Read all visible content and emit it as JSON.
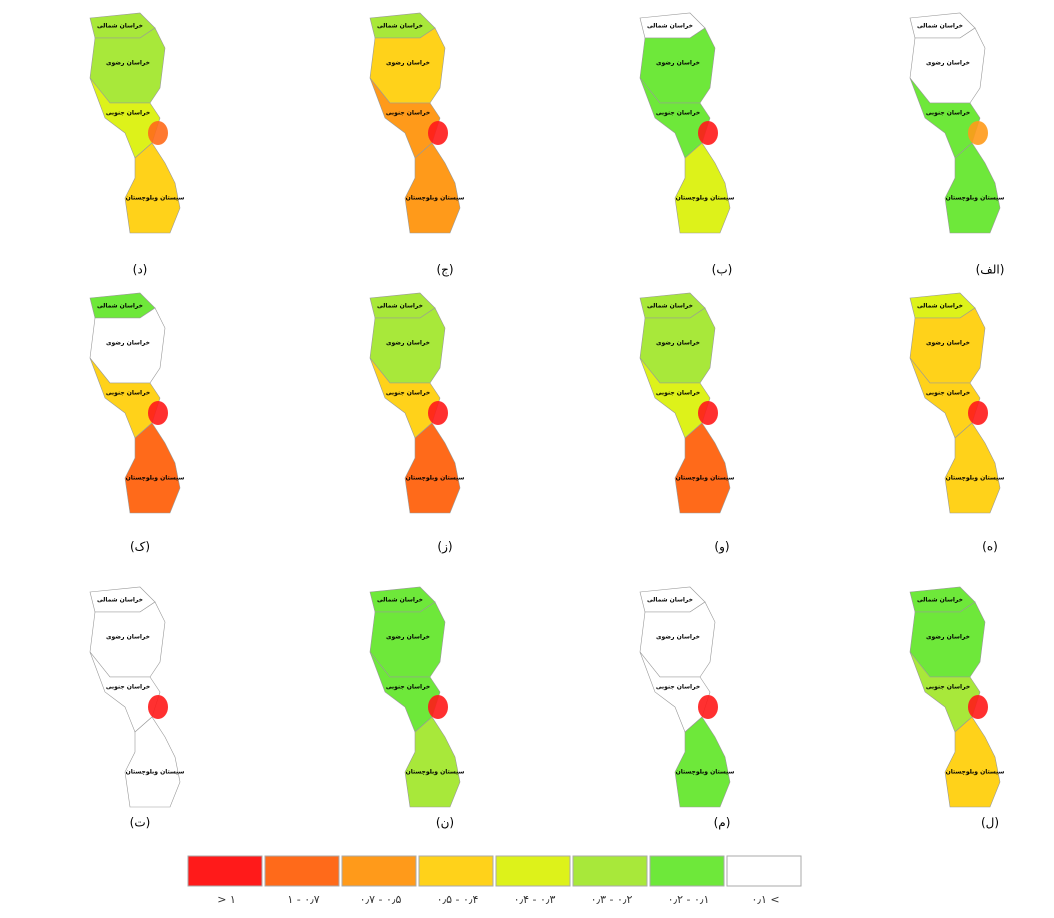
{
  "region_names": [
    "خراسان شمالی",
    "خراسان رضوی",
    "خراسان جنوبی",
    "سیستان وبلوچستان"
  ],
  "panels": [
    {
      "label": "(الف)",
      "fills": [
        7,
        7,
        6,
        6
      ],
      "hotspot": 2
    },
    {
      "label": "(ب)",
      "fills": [
        7,
        6,
        6,
        4
      ],
      "hotspot": 0
    },
    {
      "label": "(ج)",
      "fills": [
        5,
        3,
        2,
        2
      ],
      "hotspot": 0
    },
    {
      "label": "(د)",
      "fills": [
        5,
        5,
        4,
        3
      ],
      "hotspot": 1
    },
    {
      "label": "(ه)",
      "fills": [
        4,
        3,
        3,
        3
      ],
      "hotspot": 0
    },
    {
      "label": "(و)",
      "fills": [
        5,
        5,
        4,
        1
      ],
      "hotspot": 0
    },
    {
      "label": "(ز)",
      "fills": [
        5,
        5,
        3,
        1
      ],
      "hotspot": 0
    },
    {
      "label": "(ک)",
      "fills": [
        6,
        7,
        3,
        1
      ],
      "hotspot": 0
    },
    {
      "label": "(ل)",
      "fills": [
        6,
        6,
        5,
        3
      ],
      "hotspot": 0
    },
    {
      "label": "(م)",
      "fills": [
        7,
        7,
        7,
        6
      ],
      "hotspot": 0
    },
    {
      "label": "(ن)",
      "fills": [
        6,
        6,
        6,
        5
      ],
      "hotspot": 0
    },
    {
      "label": "(ت)",
      "fills": [
        7,
        7,
        7,
        7
      ],
      "hotspot": 0
    }
  ],
  "legend": {
    "colors": [
      "#ff1a1a",
      "#ff6a1a",
      "#ff9a1a",
      "#ffd21a",
      "#ddf21a",
      "#a8e83a",
      "#6ee83a",
      "#ffffff"
    ],
    "labels": [
      "> ۱",
      "۱ - ۰٫۷",
      "۰٫۷ - ۰٫۵",
      "۰٫۵ - ۰٫۴",
      "۰٫۴ - ۰٫۳",
      "۰٫۳ - ۰٫۲",
      "۰٫۲ - ۰٫۱",
      "۰٫۱ <"
    ]
  }
}
